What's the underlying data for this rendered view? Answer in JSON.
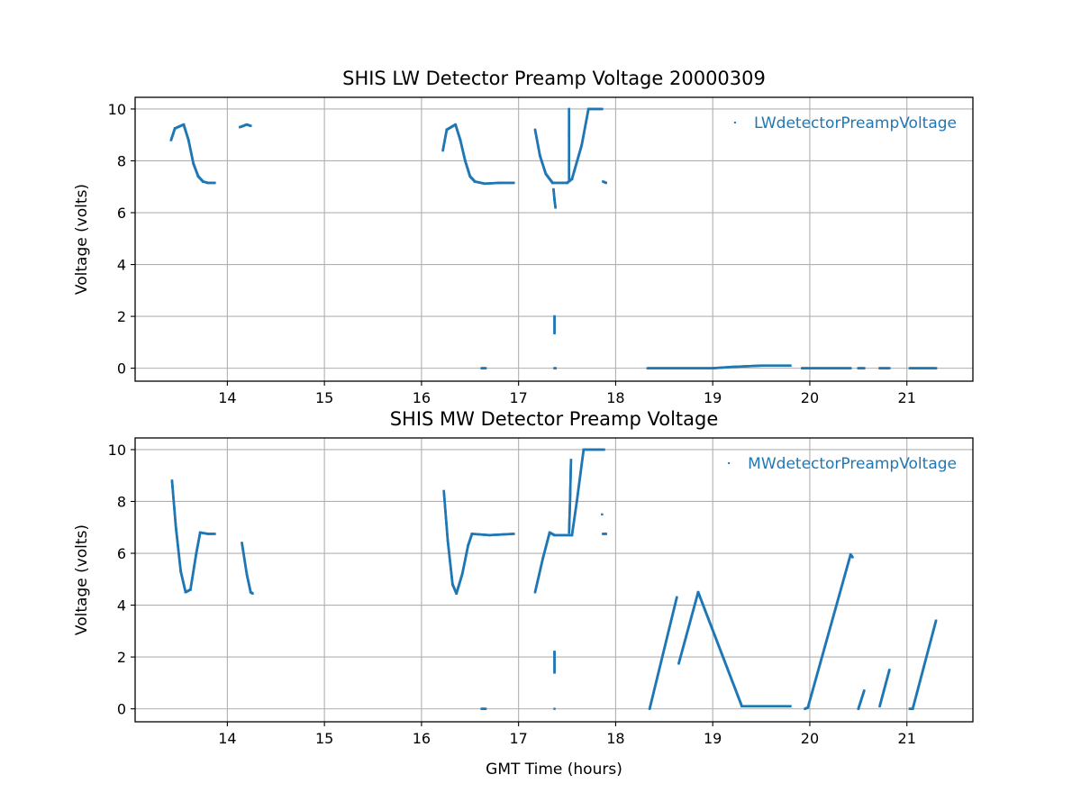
{
  "chart_data": [
    {
      "type": "scatter",
      "title": "SHIS LW Detector Preamp Voltage 20000309",
      "xlabel": "",
      "ylabel": "Voltage (volts)",
      "xlim": [
        13.05,
        21.68
      ],
      "ylim": [
        -0.5,
        10.45
      ],
      "xticks": [
        14,
        15,
        16,
        17,
        18,
        19,
        20,
        21
      ],
      "yticks": [
        0,
        2,
        4,
        6,
        8,
        10
      ],
      "grid": true,
      "legend_position": "top-right",
      "color": "#1f77b4",
      "series": [
        {
          "name": "LWdetectorPreampVoltage",
          "segments": [
            [
              [
                13.42,
                8.8
              ],
              [
                13.46,
                9.25
              ],
              [
                13.55,
                9.4
              ],
              [
                13.6,
                8.8
              ],
              [
                13.65,
                7.9
              ],
              [
                13.7,
                7.4
              ],
              [
                13.75,
                7.2
              ],
              [
                13.8,
                7.15
              ],
              [
                13.87,
                7.15
              ]
            ],
            [
              [
                14.13,
                9.3
              ],
              [
                14.2,
                9.4
              ],
              [
                14.24,
                9.35
              ]
            ],
            [
              [
                16.22,
                8.4
              ],
              [
                16.26,
                9.2
              ],
              [
                16.35,
                9.4
              ],
              [
                16.4,
                8.8
              ],
              [
                16.45,
                8.0
              ],
              [
                16.5,
                7.4
              ],
              [
                16.55,
                7.2
              ],
              [
                16.65,
                7.12
              ],
              [
                16.8,
                7.15
              ],
              [
                16.95,
                7.15
              ]
            ],
            [
              [
                17.17,
                9.2
              ],
              [
                17.22,
                8.2
              ],
              [
                17.28,
                7.5
              ],
              [
                17.35,
                7.15
              ],
              [
                17.5,
                7.15
              ],
              [
                17.55,
                7.3
              ],
              [
                17.65,
                8.6
              ],
              [
                17.72,
                10.0
              ],
              [
                17.86,
                10.0
              ]
            ],
            [
              [
                17.36,
                6.9
              ],
              [
                17.37,
                6.5
              ],
              [
                17.38,
                6.2
              ]
            ],
            [
              [
                17.37,
                1.35
              ],
              [
                17.37,
                2.0
              ]
            ],
            [
              [
                17.52,
                7.3
              ],
              [
                17.52,
                8.0
              ],
              [
                17.52,
                9.0
              ],
              [
                17.52,
                10.0
              ]
            ],
            [
              [
                17.87,
                7.2
              ],
              [
                17.9,
                7.15
              ]
            ],
            [
              [
                16.62,
                0.0
              ],
              [
                16.66,
                0.0
              ]
            ],
            [
              [
                17.37,
                0.0
              ],
              [
                17.38,
                0.0
              ]
            ],
            [
              [
                18.33,
                0.0
              ],
              [
                19.0,
                0.0
              ],
              [
                19.2,
                0.05
              ],
              [
                19.5,
                0.1
              ],
              [
                19.8,
                0.1
              ]
            ],
            [
              [
                19.92,
                0.0
              ],
              [
                20.42,
                0.0
              ]
            ],
            [
              [
                20.5,
                0.0
              ],
              [
                20.56,
                0.0
              ]
            ],
            [
              [
                20.72,
                0.0
              ],
              [
                20.82,
                0.0
              ]
            ],
            [
              [
                21.03,
                0.0
              ],
              [
                21.3,
                0.0
              ]
            ]
          ]
        }
      ]
    },
    {
      "type": "scatter",
      "title": "SHIS MW Detector Preamp Voltage",
      "xlabel": "GMT Time (hours)",
      "ylabel": "Voltage (volts)",
      "xlim": [
        13.05,
        21.68
      ],
      "ylim": [
        -0.5,
        10.45
      ],
      "xticks": [
        14,
        15,
        16,
        17,
        18,
        19,
        20,
        21
      ],
      "yticks": [
        0,
        2,
        4,
        6,
        8,
        10
      ],
      "grid": true,
      "legend_position": "top-right",
      "color": "#1f77b4",
      "series": [
        {
          "name": "MWdetectorPreampVoltage",
          "segments": [
            [
              [
                13.43,
                8.8
              ],
              [
                13.47,
                7.0
              ],
              [
                13.52,
                5.3
              ],
              [
                13.57,
                4.5
              ],
              [
                13.62,
                4.6
              ],
              [
                13.68,
                6.0
              ],
              [
                13.72,
                6.8
              ],
              [
                13.8,
                6.75
              ],
              [
                13.87,
                6.75
              ]
            ],
            [
              [
                14.15,
                6.4
              ],
              [
                14.2,
                5.2
              ],
              [
                14.24,
                4.5
              ],
              [
                14.26,
                4.45
              ]
            ],
            [
              [
                16.23,
                8.4
              ],
              [
                16.27,
                6.5
              ],
              [
                16.32,
                4.8
              ],
              [
                16.36,
                4.45
              ],
              [
                16.42,
                5.2
              ],
              [
                16.48,
                6.3
              ],
              [
                16.52,
                6.75
              ],
              [
                16.7,
                6.7
              ],
              [
                16.95,
                6.75
              ]
            ],
            [
              [
                17.17,
                4.5
              ],
              [
                17.25,
                5.8
              ],
              [
                17.32,
                6.8
              ],
              [
                17.37,
                6.7
              ],
              [
                17.55,
                6.7
              ],
              [
                17.6,
                8.0
              ],
              [
                17.67,
                10.0
              ],
              [
                17.88,
                10.0
              ]
            ],
            [
              [
                17.37,
                1.4
              ],
              [
                17.37,
                2.2
              ]
            ],
            [
              [
                17.52,
                6.8
              ],
              [
                17.53,
                8.0
              ],
              [
                17.54,
                9.6
              ]
            ],
            [
              [
                17.86,
                7.5
              ]
            ],
            [
              [
                17.87,
                6.75
              ],
              [
                17.9,
                6.75
              ]
            ],
            [
              [
                16.62,
                0.0
              ],
              [
                16.66,
                0.0
              ]
            ],
            [
              [
                17.37,
                0.0
              ]
            ],
            [
              [
                18.35,
                0.0
              ],
              [
                18.63,
                4.3
              ]
            ],
            [
              [
                18.65,
                1.75
              ],
              [
                18.85,
                4.5
              ],
              [
                19.3,
                0.1
              ],
              [
                19.8,
                0.1
              ]
            ],
            [
              [
                19.95,
                0.0
              ],
              [
                19.98,
                0.05
              ],
              [
                20.42,
                5.95
              ],
              [
                20.44,
                5.85
              ]
            ],
            [
              [
                20.5,
                0.0
              ],
              [
                20.56,
                0.7
              ]
            ],
            [
              [
                20.72,
                0.1
              ],
              [
                20.82,
                1.5
              ]
            ],
            [
              [
                21.03,
                0.0
              ],
              [
                21.06,
                0.0
              ],
              [
                21.3,
                3.4
              ]
            ]
          ]
        }
      ]
    }
  ]
}
